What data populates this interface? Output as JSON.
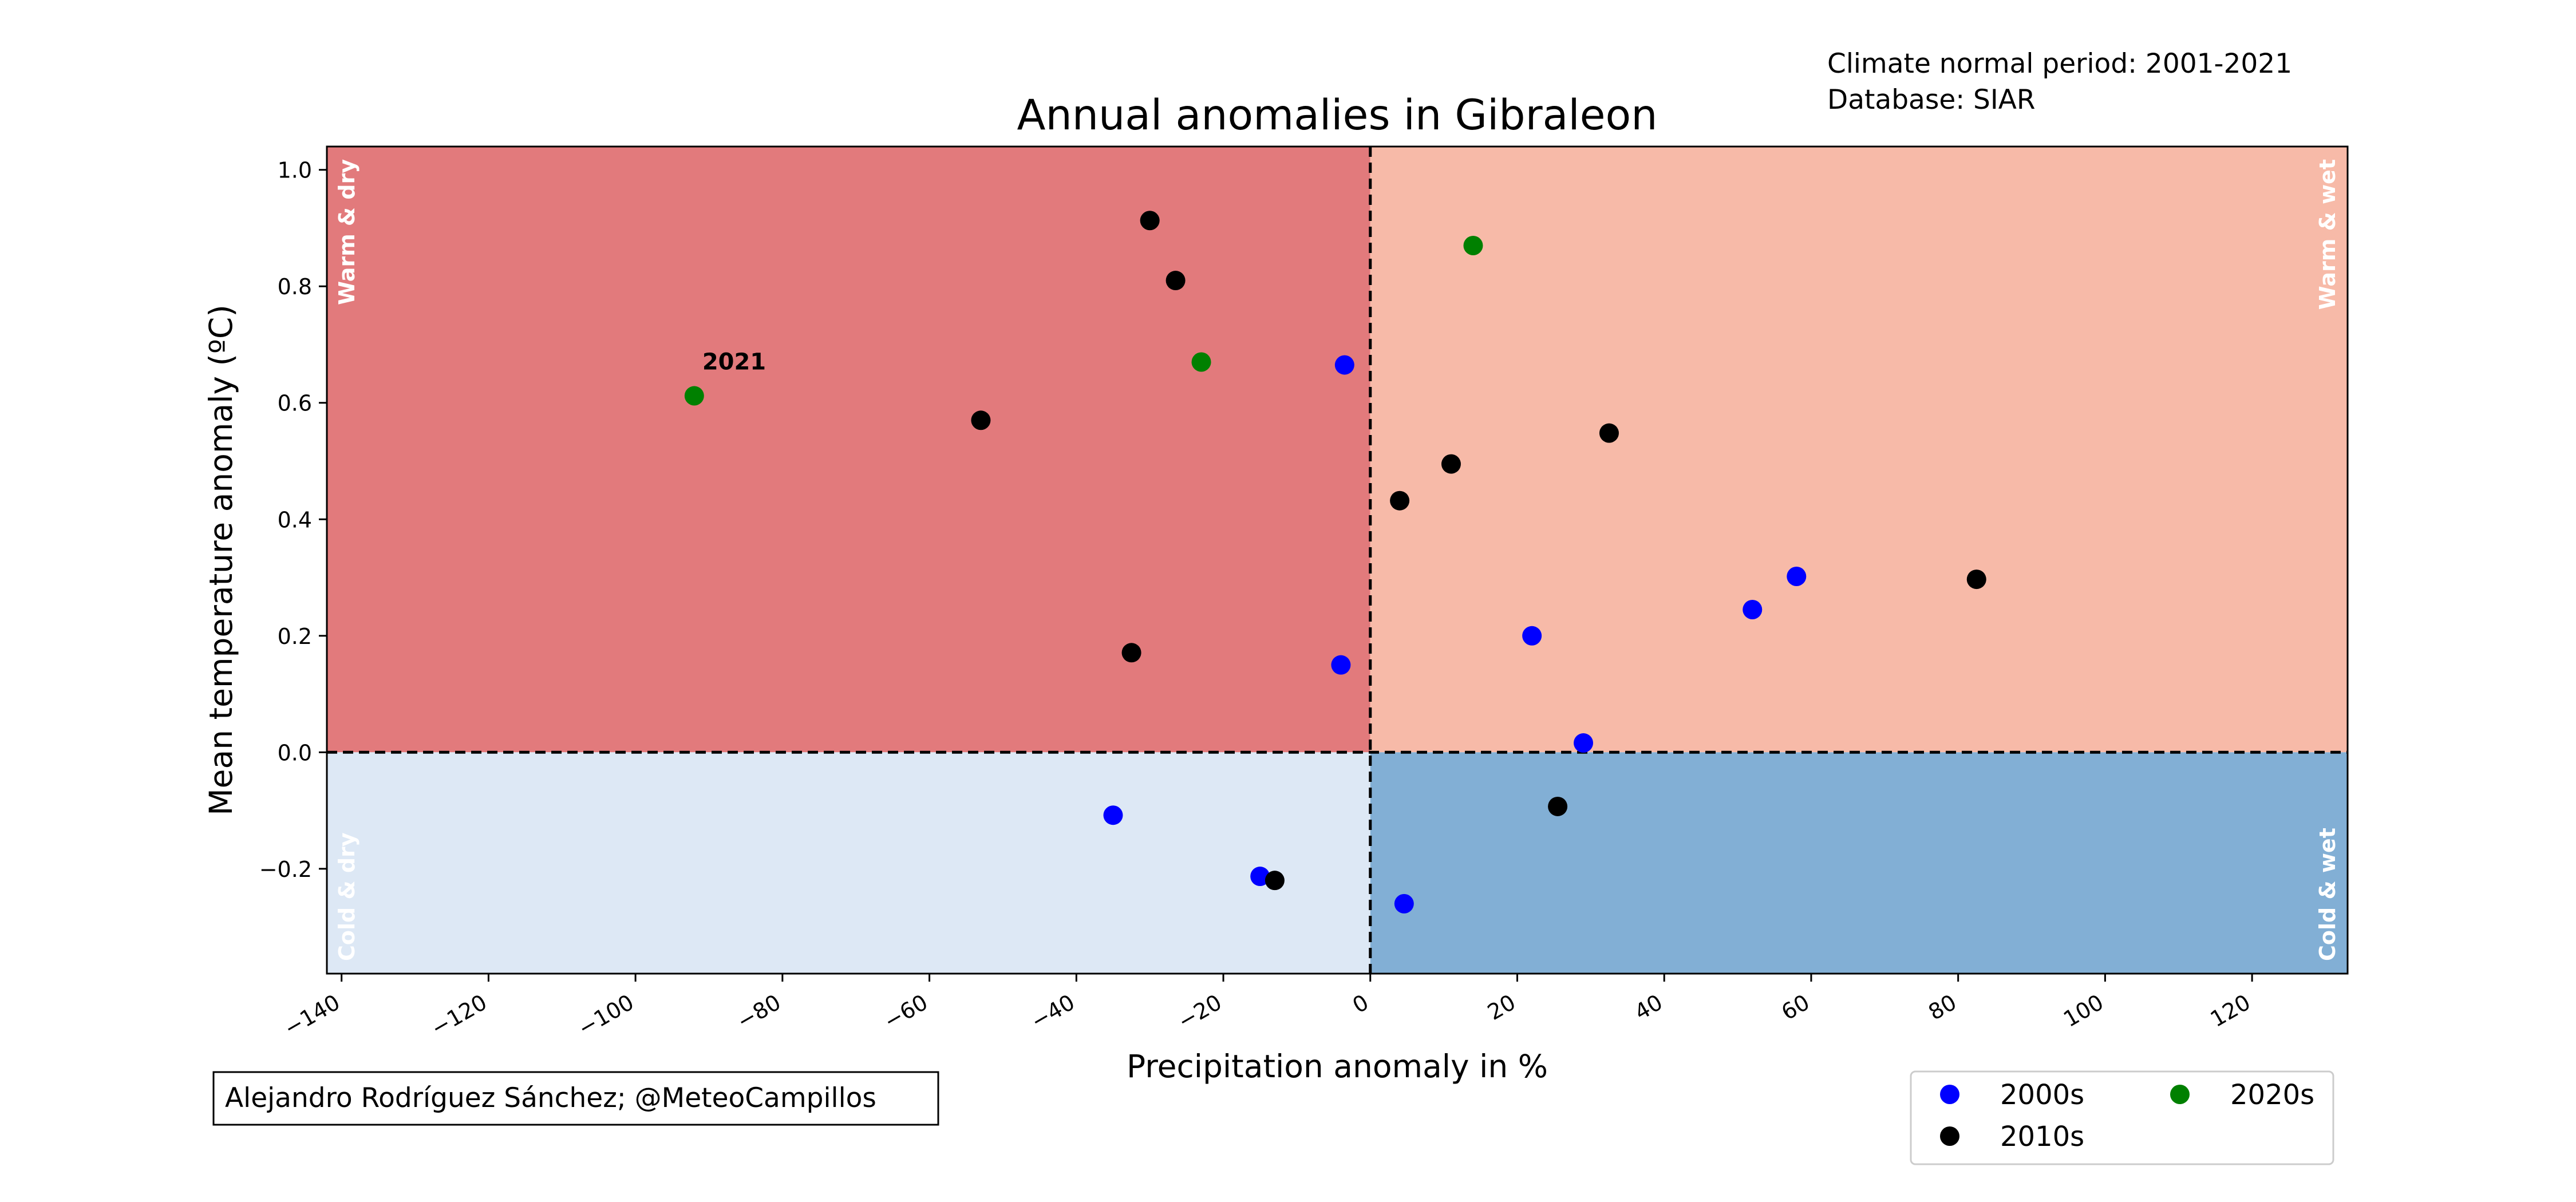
{
  "header": {
    "info_lines": [
      "Climate normal period: 2001-2021",
      "Database: SIAR"
    ]
  },
  "credit": "Alejandro Rodríguez Sánchez; @MeteoCampillos",
  "chart_data": {
    "type": "scatter",
    "title": "Annual anomalies in Gibraleon",
    "xlabel": "Precipitation anomaly in %",
    "ylabel": "Mean temperature anomaly (ºC)",
    "xlim": [
      -142,
      133
    ],
    "ylim": [
      -0.38,
      1.04
    ],
    "xticks": [
      -140,
      -120,
      -100,
      -80,
      -60,
      -40,
      -20,
      0,
      20,
      40,
      60,
      80,
      100,
      120
    ],
    "xtick_labels": [
      "−140",
      "−120",
      "−100",
      "−80",
      "−60",
      "−40",
      "−20",
      "0",
      "20",
      "40",
      "60",
      "80",
      "100",
      "120"
    ],
    "yticks": [
      -0.2,
      0.0,
      0.2,
      0.4,
      0.6,
      0.8,
      1.0
    ],
    "ytick_labels": [
      "−0.2",
      "0.0",
      "0.2",
      "0.4",
      "0.6",
      "0.8",
      "1.0"
    ],
    "grid": false,
    "reference_lines": {
      "x": 0,
      "y": 0,
      "style": "dashed"
    },
    "quadrants": [
      {
        "label": "Warm & dry",
        "x_side": "negative",
        "y_side": "positive",
        "color": "#e27a7c",
        "label_color": "#ffffff"
      },
      {
        "label": "Warm & wet",
        "x_side": "positive",
        "y_side": "positive",
        "color": "#f7baa8",
        "label_color": "#ffffff"
      },
      {
        "label": "Cold & dry",
        "x_side": "negative",
        "y_side": "negative",
        "color": "#dde8f5",
        "label_color": "#ffffff"
      },
      {
        "label": "Cold & wet",
        "x_side": "positive",
        "y_side": "negative",
        "color": "#82afd5",
        "label_color": "#ffffff"
      }
    ],
    "legend": {
      "position": "bottom-right",
      "columns": 2
    },
    "series": [
      {
        "name": "2000s",
        "color": "#0000ff",
        "points": [
          {
            "x": -3.5,
            "y": 0.665
          },
          {
            "x": -4,
            "y": 0.15
          },
          {
            "x": 22,
            "y": 0.2
          },
          {
            "x": 52,
            "y": 0.245
          },
          {
            "x": 58,
            "y": 0.302
          },
          {
            "x": 29,
            "y": 0.016
          },
          {
            "x": -35,
            "y": -0.108
          },
          {
            "x": -15,
            "y": -0.213
          },
          {
            "x": 4.6,
            "y": -0.26
          }
        ]
      },
      {
        "name": "2010s",
        "color": "#000000",
        "points": [
          {
            "x": -30,
            "y": 0.913
          },
          {
            "x": -26.5,
            "y": 0.81
          },
          {
            "x": -53,
            "y": 0.57
          },
          {
            "x": -32.5,
            "y": 0.171
          },
          {
            "x": 4,
            "y": 0.432
          },
          {
            "x": 11,
            "y": 0.495
          },
          {
            "x": 32.5,
            "y": 0.548
          },
          {
            "x": 82.5,
            "y": 0.297
          },
          {
            "x": 25.5,
            "y": -0.093
          },
          {
            "x": -13,
            "y": -0.22
          }
        ]
      },
      {
        "name": "2020s",
        "color": "#008000",
        "points": [
          {
            "x": 14,
            "y": 0.87
          },
          {
            "x": -23,
            "y": 0.67
          },
          {
            "x": -92,
            "y": 0.612
          }
        ]
      }
    ],
    "annotations": [
      {
        "text": "2021",
        "x": -92,
        "y": 0.612
      }
    ]
  }
}
